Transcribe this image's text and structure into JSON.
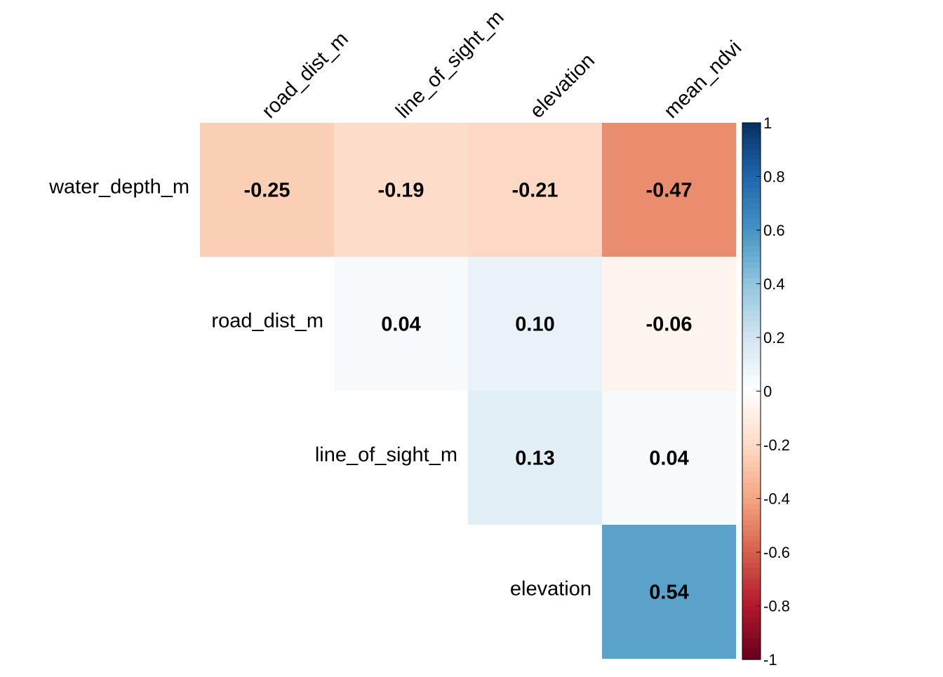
{
  "chart_data": {
    "type": "heatmap",
    "layout": "upper-triangle",
    "row_labels": [
      "water_depth_m",
      "road_dist_m",
      "line_of_sight_m",
      "elevation"
    ],
    "col_labels": [
      "road_dist_m",
      "line_of_sight_m",
      "elevation",
      "mean_ndvi"
    ],
    "cells": [
      {
        "row": 0,
        "col": 0,
        "value": -0.25,
        "label": "-0.25"
      },
      {
        "row": 0,
        "col": 1,
        "value": -0.19,
        "label": "-0.19"
      },
      {
        "row": 0,
        "col": 2,
        "value": -0.21,
        "label": "-0.21"
      },
      {
        "row": 0,
        "col": 3,
        "value": -0.47,
        "label": "-0.47"
      },
      {
        "row": 1,
        "col": 1,
        "value": 0.04,
        "label": "0.04"
      },
      {
        "row": 1,
        "col": 2,
        "value": 0.1,
        "label": "0.10"
      },
      {
        "row": 1,
        "col": 3,
        "value": -0.06,
        "label": "-0.06"
      },
      {
        "row": 2,
        "col": 2,
        "value": 0.13,
        "label": "0.13"
      },
      {
        "row": 2,
        "col": 3,
        "value": 0.04,
        "label": "0.04"
      },
      {
        "row": 3,
        "col": 3,
        "value": 0.54,
        "label": "0.54"
      }
    ],
    "color_scale": {
      "range": [
        -1,
        1
      ],
      "ticks": [
        "-1",
        "-0.8",
        "-0.6",
        "-0.4",
        "-0.2",
        "0",
        "0.2",
        "0.4",
        "0.6",
        "0.8",
        "1"
      ],
      "tick_values": [
        -1,
        -0.8,
        -0.6,
        -0.4,
        -0.2,
        0,
        0.2,
        0.4,
        0.6,
        0.8,
        1
      ],
      "palette": [
        "#67001F",
        "#B2182B",
        "#D6604D",
        "#F4A582",
        "#FDDBC7",
        "#FFFFFF",
        "#D1E5F0",
        "#92C5DE",
        "#4393C3",
        "#2166AC",
        "#053061"
      ]
    }
  }
}
